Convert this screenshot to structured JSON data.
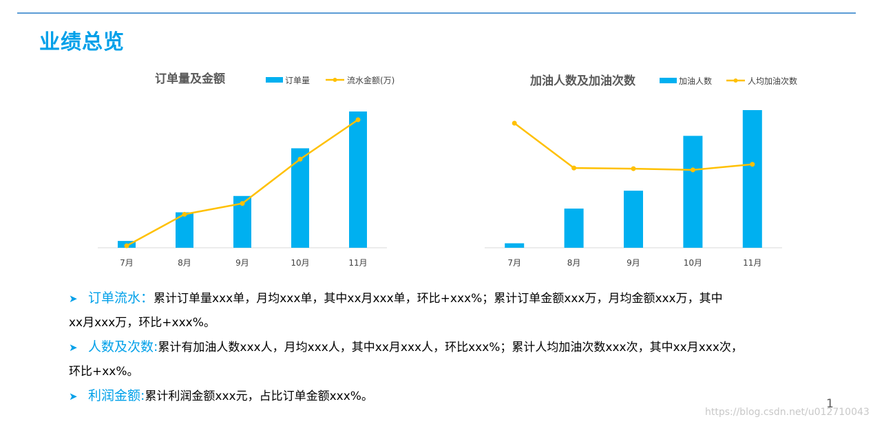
{
  "page": {
    "title": "业绩总览",
    "page_number": "1",
    "watermark": "https://blog.csdn.net/u012710043"
  },
  "colors": {
    "accent": "#00a0e9",
    "bar": "#00b0f0",
    "line": "#ffc000",
    "rule": "#5b9bd5"
  },
  "chart_data": [
    {
      "type": "bar",
      "title": "订单量及金额",
      "categories": [
        "7月",
        "8月",
        "9月",
        "10月",
        "11月"
      ],
      "series": [
        {
          "name": "订单量",
          "type": "bar",
          "values": [
            5,
            26,
            38,
            73,
            100
          ]
        },
        {
          "name": "流水金额(万)",
          "type": "line",
          "values": [
            2,
            34,
            45,
            90,
            130
          ]
        }
      ],
      "ylim_bar": [
        0,
        100
      ],
      "ylim_line": [
        0,
        130
      ],
      "grid": false,
      "legend": "top-right"
    },
    {
      "type": "bar",
      "title": "加油人数及加油次数",
      "categories": [
        "7月",
        "8月",
        "9月",
        "10月",
        "11月"
      ],
      "series": [
        {
          "name": "加油人数",
          "type": "bar",
          "values": [
            4,
            35,
            51,
            100,
            123
          ]
        },
        {
          "name": "人均加油次数",
          "type": "line",
          "values": [
            100,
            64,
            63.5,
            62.5,
            67
          ]
        }
      ],
      "ylim_bar": [
        0,
        123
      ],
      "ylim_line": [
        0,
        100
      ],
      "grid": false,
      "legend": "top-right"
    }
  ],
  "bullets": [
    {
      "label": "订单流水：",
      "text1": "累计订单量xxx单，月均xxx单，其中xx月xxx单，环比+xxx%；累计订单金额xxx万，月均金额xxx万，其中",
      "text2": "xx月xxx万，环比+xxx%。"
    },
    {
      "label": "人数及次数:",
      "text1": "累计有加油人数xxx人，月均xxx人，其中xx月xxx人，环比xxx%；累计人均加油次数xxx次，其中xx月xxx次，",
      "text2": "环比+xx%。"
    },
    {
      "label": "利润金额:",
      "text1": "累计利润金额xxx元，占比订单金额xxx%。",
      "text2": ""
    }
  ]
}
